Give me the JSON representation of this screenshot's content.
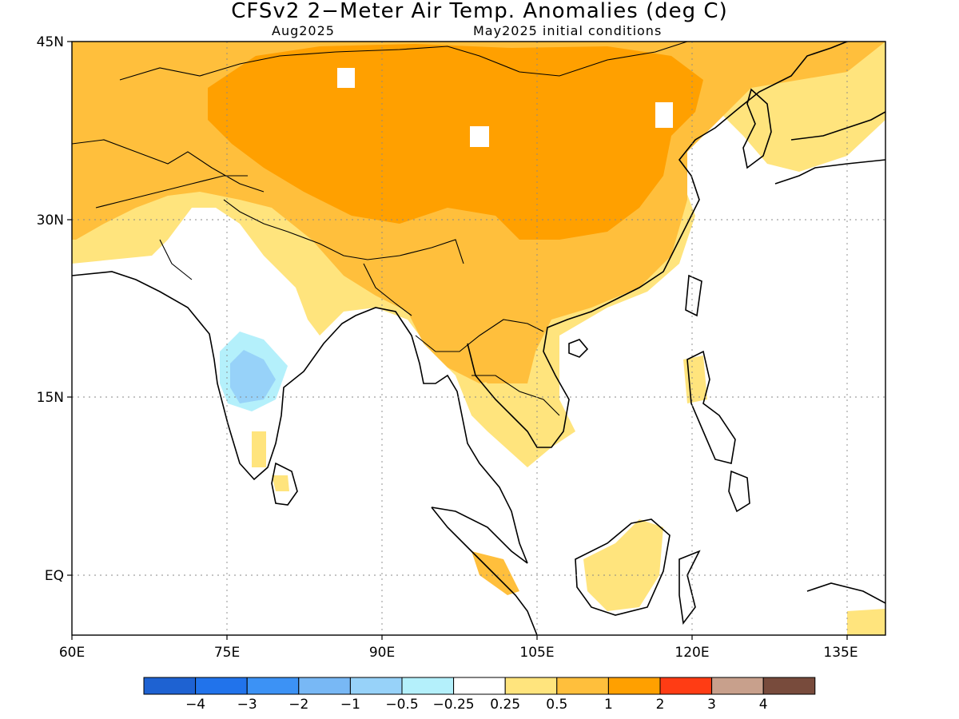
{
  "title": "CFSv2 2−Meter Air Temp. Anomalies (deg C)",
  "valid_month": "Aug2025",
  "initial_conditions": "May2025 initial conditions",
  "lon_labels": [
    "60E",
    "75E",
    "90E",
    "105E",
    "120E",
    "135E"
  ],
  "lat_labels": [
    "45N",
    "30N",
    "15N",
    "EQ"
  ],
  "colorbar": {
    "colors": [
      "#1e62d2",
      "#2173eb",
      "#3c92f5",
      "#78b8f5",
      "#97d2f9",
      "#b4f0fb",
      "#ffffff",
      "#ffe47d",
      "#ffbf3c",
      "#ffa000",
      "#ff3c14",
      "#c8a08c",
      "#784b3c"
    ],
    "labels": [
      "−4",
      "−3",
      "−2",
      "−1",
      "−0.5",
      "−0.25",
      "0.25",
      "0.5",
      "1",
      "2",
      "3",
      "4"
    ]
  }
}
